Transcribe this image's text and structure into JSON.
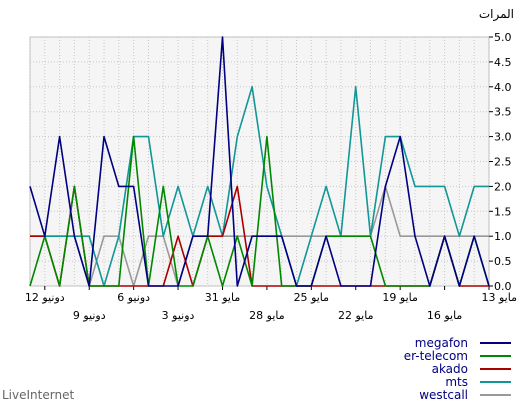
{
  "chart_data": {
    "type": "line",
    "ylabel": "المرات",
    "ylim": [
      0,
      5
    ],
    "y_ticks": [
      "0.0",
      "0.5",
      "1.0",
      "1.5",
      "2.0",
      "2.5",
      "3.0",
      "3.5",
      "4.0",
      "4.5",
      "5.0"
    ],
    "x_domain": [
      0,
      31
    ],
    "x_reversed": true,
    "x_ticks": [
      {
        "pos": 0,
        "label": "13 مايو",
        "row": 0
      },
      {
        "pos": 3,
        "label": "16 مايو",
        "row": 1
      },
      {
        "pos": 6,
        "label": "19 مايو",
        "row": 0
      },
      {
        "pos": 9,
        "label": "22 مايو",
        "row": 1
      },
      {
        "pos": 12,
        "label": "25 مايو",
        "row": 0
      },
      {
        "pos": 15,
        "label": "28 مايو",
        "row": 1
      },
      {
        "pos": 18,
        "label": "31 مايو",
        "row": 0
      },
      {
        "pos": 21,
        "label": "3 دونيو",
        "row": 1
      },
      {
        "pos": 24,
        "label": "6 دونيو",
        "row": 0
      },
      {
        "pos": 27,
        "label": "9 دونيو",
        "row": 1
      },
      {
        "pos": 30,
        "label": "12 دونيو",
        "row": 0
      }
    ],
    "grid": true,
    "legend_position": "bottom-right",
    "series": [
      {
        "name": "westcall",
        "color": "#999999",
        "values": [
          1,
          1,
          1,
          1,
          1,
          1,
          1,
          2,
          1,
          1,
          1,
          1,
          1,
          1,
          1,
          1,
          1,
          1,
          1,
          1,
          1,
          0,
          1,
          1,
          0,
          1,
          1,
          0,
          1,
          1,
          1,
          1
        ]
      },
      {
        "name": "mts",
        "color": "#129696",
        "values": [
          2,
          2,
          1,
          2,
          2,
          2,
          3,
          3,
          1,
          4,
          1,
          2,
          1,
          0,
          1,
          2,
          4,
          3,
          1,
          2,
          1,
          2,
          1,
          3,
          3,
          1,
          0,
          1,
          1,
          1,
          1,
          1
        ]
      },
      {
        "name": "akado",
        "color": "#aa0000",
        "values": [
          0,
          0,
          0,
          1,
          0,
          0,
          0,
          0,
          0,
          0,
          0,
          0,
          0,
          0,
          0,
          0,
          0,
          2,
          1,
          1,
          0,
          1,
          0,
          0,
          0,
          0,
          0,
          0,
          2,
          0,
          1,
          1
        ]
      },
      {
        "name": "er-telecom",
        "color": "#008800",
        "values": [
          0,
          1,
          0,
          1,
          0,
          0,
          0,
          0,
          1,
          1,
          1,
          1,
          0,
          0,
          0,
          3,
          0,
          1,
          0,
          1,
          0,
          0,
          2,
          0,
          3,
          0,
          0,
          0,
          2,
          0,
          1,
          0
        ]
      },
      {
        "name": "megafon",
        "color": "#000080",
        "values": [
          0,
          1,
          0,
          1,
          0,
          1,
          3,
          2,
          0,
          0,
          0,
          1,
          0,
          0,
          1,
          1,
          1,
          0,
          5,
          1,
          1,
          0,
          0,
          0,
          2,
          2,
          3,
          0,
          1,
          3,
          1,
          2
        ]
      }
    ]
  },
  "legend_order": [
    "megafon",
    "er-telecom",
    "akado",
    "mts",
    "westcall"
  ],
  "brand": "LiveInternet"
}
